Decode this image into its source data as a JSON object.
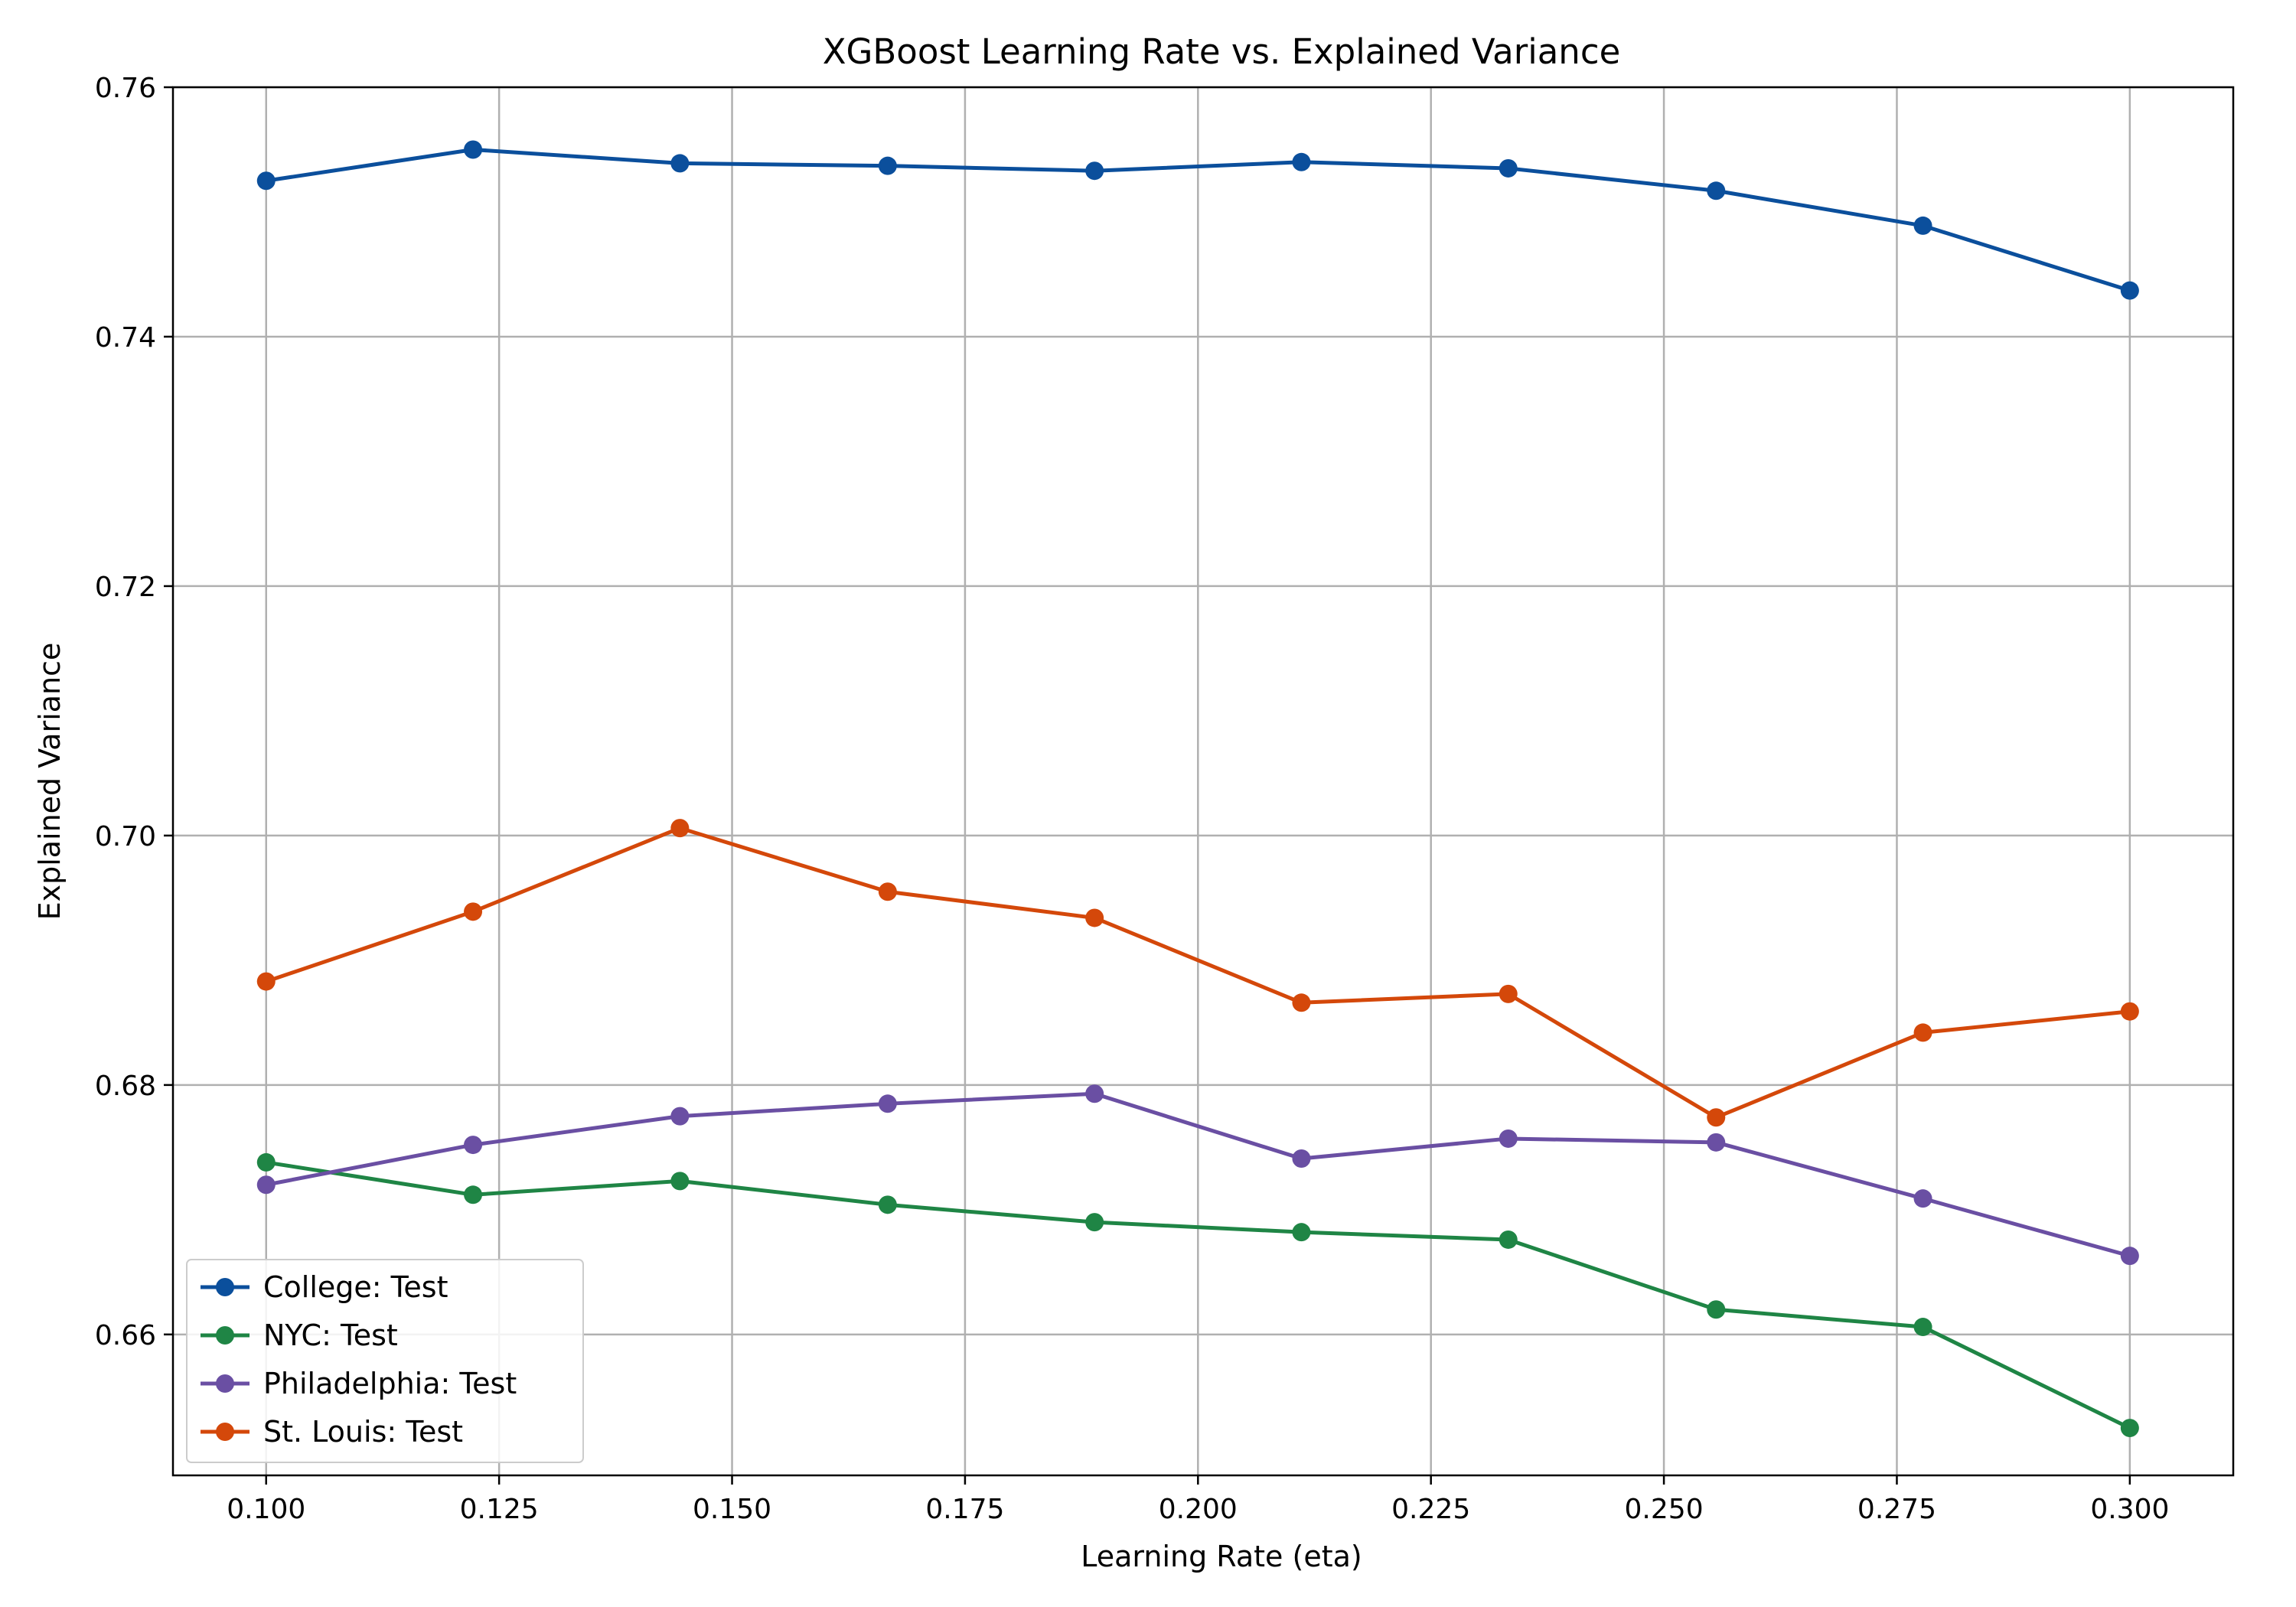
{
  "chart_data": {
    "type": "line",
    "title": "XGBoost Learning Rate vs. Explained Variance",
    "xlabel": "Learning Rate (eta)",
    "ylabel": "Explained Variance",
    "xlim": [
      0.09,
      0.3111
    ],
    "ylim": [
      0.6487,
      0.76
    ],
    "xticks": [
      0.1,
      0.125,
      0.15,
      0.175,
      0.2,
      0.225,
      0.25,
      0.275,
      0.3
    ],
    "xtick_labels": [
      "0.100",
      "0.125",
      "0.150",
      "0.175",
      "0.200",
      "0.225",
      "0.250",
      "0.275",
      "0.300"
    ],
    "yticks": [
      0.66,
      0.68,
      0.7,
      0.72,
      0.74,
      0.76
    ],
    "ytick_labels": [
      "0.66",
      "0.68",
      "0.70",
      "0.72",
      "0.74",
      "0.76"
    ],
    "grid": true,
    "legend_position": "lower-left",
    "x": [
      0.1,
      0.1222,
      0.1444,
      0.1667,
      0.1889,
      0.2111,
      0.2333,
      0.2556,
      0.2778,
      0.3
    ],
    "series": [
      {
        "name": "College: Test",
        "color": "#0b4f9c",
        "values": [
          0.7525,
          0.755,
          0.7539,
          0.7537,
          0.7533,
          0.754,
          0.7535,
          0.7517,
          0.7489,
          0.7437
        ]
      },
      {
        "name": "NYC: Test",
        "color": "#1f8545",
        "values": [
          0.6738,
          0.6712,
          0.6723,
          0.6704,
          0.669,
          0.6682,
          0.6676,
          0.662,
          0.6606,
          0.6525
        ]
      },
      {
        "name": "Philadelphia: Test",
        "color": "#6a4fa3",
        "values": [
          0.672,
          0.6752,
          0.6775,
          0.6785,
          0.6793,
          0.6741,
          0.6757,
          0.6754,
          0.6709,
          0.6663
        ]
      },
      {
        "name": "St. Louis: Test",
        "color": "#d4480a",
        "values": [
          0.6883,
          0.6939,
          0.7006,
          0.6955,
          0.6934,
          0.6866,
          0.6873,
          0.6774,
          0.6842,
          0.6859
        ]
      }
    ]
  }
}
